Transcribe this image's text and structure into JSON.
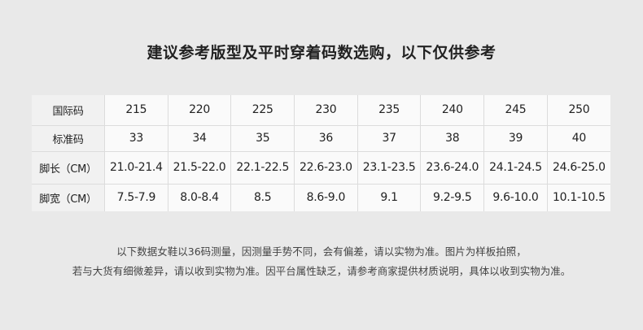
{
  "title": "建议参考版型及平时穿着码数选购，以下仅供参考",
  "table": {
    "rows": [
      {
        "label": "国际码",
        "values": [
          "215",
          "220",
          "225",
          "230",
          "235",
          "240",
          "245",
          "250"
        ]
      },
      {
        "label": "标准码",
        "values": [
          "33",
          "34",
          "35",
          "36",
          "37",
          "38",
          "39",
          "40"
        ]
      },
      {
        "label": "脚长（CM）",
        "values": [
          "21.0-21.4",
          "21.5-22.0",
          "22.1-22.5",
          "22.6-23.0",
          "23.1-23.5",
          "23.6-24.0",
          "24.1-24.5",
          "24.6-25.0"
        ]
      },
      {
        "label": "脚宽（CM）",
        "values": [
          "7.5-7.9",
          "8.0-8.4",
          "8.5",
          "8.6-9.0",
          "9.1",
          "9.2-9.5",
          "9.6-10.0",
          "10.1-10.5"
        ]
      }
    ]
  },
  "notes": [
    "以下数据女鞋以36码测量，因测量手势不同，会有偏差，请以实物为准。图片为样板拍照，",
    "若与大货有细微差异，请以收到实物为准。因平台属性缺乏，请参考商家提供材质说明，具体以收到实物为准。"
  ]
}
